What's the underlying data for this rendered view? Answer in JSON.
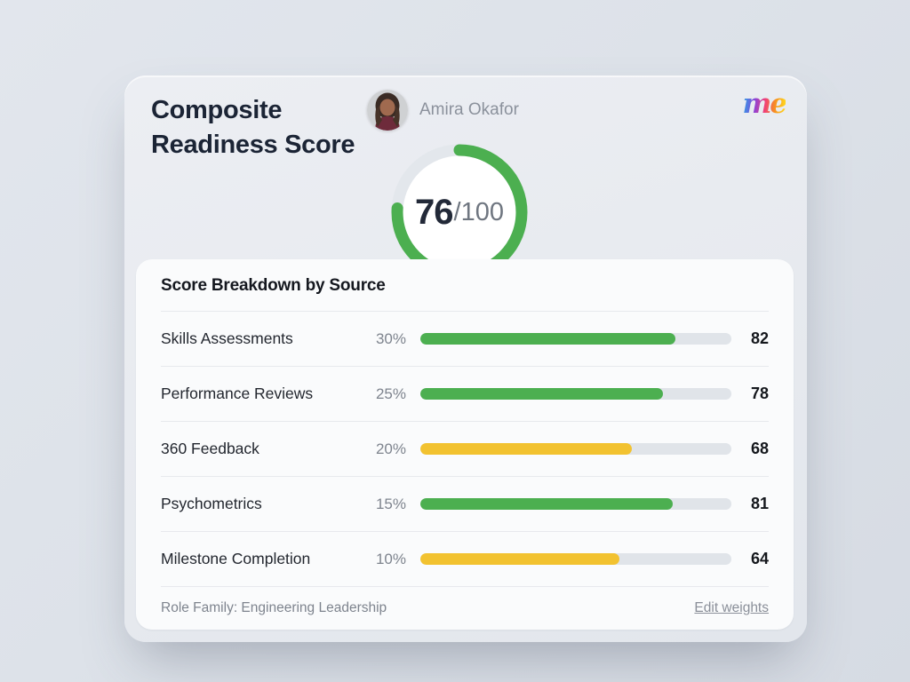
{
  "header": {
    "title": "Composite Readiness Score",
    "user_name": "Amira Okafor",
    "logo_text": "me"
  },
  "gauge": {
    "value": 76,
    "value_label": "76",
    "max_label": "/100",
    "ring_color": "#4caf50",
    "track_color": "#e3e7ec"
  },
  "breakdown": {
    "title": "Score Breakdown by Source",
    "rows": [
      {
        "label": "Skills Assessments",
        "weight": "30%",
        "score": 82,
        "bar_color": "#4caf50"
      },
      {
        "label": "Performance Reviews",
        "weight": "25%",
        "score": 78,
        "bar_color": "#4caf50"
      },
      {
        "label": "360 Feedback",
        "weight": "20%",
        "score": 68,
        "bar_color": "#f2c230"
      },
      {
        "label": "Psychometrics",
        "weight": "15%",
        "score": 81,
        "bar_color": "#4caf50"
      },
      {
        "label": "Milestone Completion",
        "weight": "10%",
        "score": 64,
        "bar_color": "#f2c230"
      }
    ],
    "footer": {
      "role_family": "Role Family: Engineering Leadership",
      "edit_link": "Edit weights"
    }
  },
  "colors": {
    "green": "#4caf50",
    "yellow": "#f2c230",
    "card_bg": "#e9ecf1",
    "panel_bg": "#fafbfc",
    "title_text": "#1b2435",
    "muted_text": "#8b919c"
  }
}
